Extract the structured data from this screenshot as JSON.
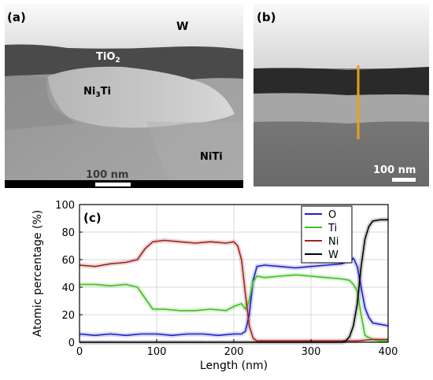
{
  "panel_a": {
    "tag": "(a)",
    "labels": {
      "w": "W",
      "tio2_main": "TiO",
      "tio2_sub": "2",
      "ni3ti_a": "Ni",
      "ni3ti_sub": "3",
      "ni3ti_b": "Ti",
      "niti": "NiTi"
    },
    "scale_bar": "100 nm"
  },
  "panel_b": {
    "tag": "(b)",
    "scale_bar": "100 nm",
    "line_color": "#e8a11a"
  },
  "chart_data": {
    "type": "line",
    "panel_tag": "(c)",
    "xlabel": "Length (nm)",
    "ylabel": "Atomic percentage (%)",
    "xlim": [
      0,
      400
    ],
    "ylim": [
      0,
      100
    ],
    "xticks": [
      0,
      100,
      200,
      300,
      400
    ],
    "yticks": [
      0,
      20,
      40,
      60,
      80,
      100
    ],
    "grid": true,
    "legend_position": "top-right",
    "series": [
      {
        "name": "O",
        "color": "#1f1fc8",
        "x": [
          0,
          20,
          40,
          60,
          80,
          100,
          120,
          140,
          160,
          180,
          200,
          210,
          215,
          220,
          225,
          230,
          240,
          260,
          280,
          300,
          320,
          340,
          350,
          355,
          360,
          365,
          370,
          375,
          380,
          390,
          400
        ],
        "y": [
          6,
          5,
          6,
          5,
          6,
          6,
          5,
          6,
          6,
          5,
          6,
          6,
          8,
          20,
          45,
          55,
          56,
          55,
          54,
          55,
          56,
          57,
          59,
          61,
          55,
          40,
          25,
          18,
          14,
          13,
          12
        ]
      },
      {
        "name": "Ti",
        "color": "#3fbf1f",
        "x": [
          0,
          20,
          40,
          60,
          75,
          85,
          95,
          110,
          130,
          150,
          170,
          190,
          200,
          210,
          215,
          220,
          225,
          230,
          240,
          260,
          280,
          300,
          320,
          340,
          350,
          355,
          360,
          365,
          370,
          380,
          390,
          400
        ],
        "y": [
          42,
          42,
          41,
          42,
          40,
          32,
          24,
          24,
          23,
          23,
          24,
          23,
          26,
          28,
          24,
          30,
          44,
          48,
          47,
          48,
          49,
          48,
          47,
          46,
          45,
          42,
          37,
          20,
          5,
          2,
          1,
          1
        ]
      },
      {
        "name": "Ni",
        "color": "#a0221e",
        "x": [
          0,
          20,
          40,
          60,
          75,
          85,
          95,
          110,
          130,
          150,
          170,
          190,
          200,
          205,
          210,
          215,
          220,
          225,
          230,
          240,
          260,
          280,
          300,
          320,
          340,
          360,
          380,
          400
        ],
        "y": [
          56,
          55,
          57,
          58,
          60,
          68,
          73,
          74,
          73,
          72,
          73,
          72,
          73,
          70,
          60,
          35,
          12,
          3,
          1,
          1,
          1,
          1,
          1,
          1,
          1,
          1,
          2,
          2
        ]
      },
      {
        "name": "W",
        "color": "#000000",
        "x": [
          0,
          50,
          100,
          150,
          200,
          250,
          300,
          340,
          345,
          350,
          355,
          360,
          365,
          370,
          375,
          380,
          390,
          400
        ],
        "y": [
          0,
          0,
          0,
          0,
          0,
          0,
          0,
          0,
          1,
          4,
          12,
          28,
          55,
          75,
          84,
          88,
          89,
          89
        ]
      }
    ]
  }
}
